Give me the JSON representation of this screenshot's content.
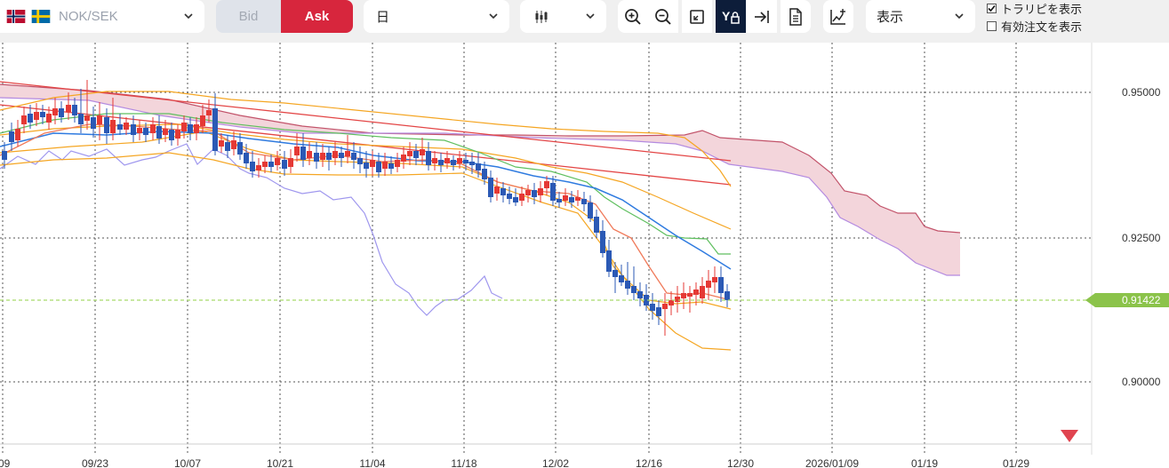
{
  "toolbar": {
    "pair": "NOK/SEK",
    "bid_label": "Bid",
    "ask_label": "Ask",
    "timeframe": "日",
    "chart_type_icon": "candlestick-icon",
    "display_select": "表示",
    "trendline_toggle": {
      "label": "トラリピを表示",
      "checked": true
    },
    "valid_orders_toggle": {
      "label": "有効注文を表示",
      "checked": false
    },
    "icons": [
      "zoom-in-icon",
      "zoom-out-icon",
      "fit-screen-icon",
      "y-axis-lock-icon",
      "scroll-to-latest-icon",
      "document-icon",
      "add-indicator-icon"
    ]
  },
  "colors": {
    "ask_bg": "#d7263d",
    "bid_bg": "#dfe3ea",
    "current_price": "#8bc34a",
    "candle_up": "#e53935",
    "candle_down": "#2b59b5",
    "cloud_fill": "#f3d5db",
    "cloud_lead_a": "#c2536a",
    "cloud_lead_b": "#b48be0",
    "lagging_span": "#9f97ee",
    "ma_blue": "#2f7be0",
    "ma_green": "#5fbf5f",
    "ma_red": "#e34545",
    "bb_orange": "#f5a623",
    "bb_salmon": "#f07a5a"
  },
  "chart": {
    "y_ticks": [
      "0.95000",
      "0.92500",
      "0.90000"
    ],
    "x_ticks": [
      "/09",
      "09/23",
      "10/07",
      "10/21",
      "11/04",
      "11/18",
      "12/02",
      "12/16",
      "12/30",
      "2026/01/09",
      "01/19",
      "01/29"
    ],
    "current_price": "0.91422",
    "current_price_value": 0.91422,
    "marker_icon": "down-triangle-marker-icon"
  }
}
